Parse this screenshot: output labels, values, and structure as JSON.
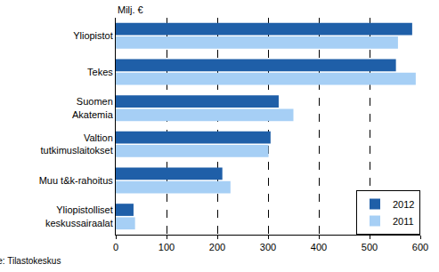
{
  "chart_data": {
    "type": "bar",
    "orientation": "horizontal",
    "xlabel": "Milj. €",
    "annotations": [
      "Lähde: Tilastokeskus"
    ],
    "categories": [
      "Yliopistot",
      "Tekes",
      "Suomen\nAkatemia",
      "Valtion\ntutkimuslaitokset",
      "Muu t&k-rahoitus",
      "Yliopistolliset\nkeskussairaalat"
    ],
    "series": [
      {
        "name": "2012",
        "color": "#1f5fa8",
        "values": [
          584,
          552,
          321,
          305,
          210,
          35
        ]
      },
      {
        "name": "2011",
        "color": "#a6cff5",
        "values": [
          556,
          591,
          350,
          301,
          226,
          38
        ]
      }
    ],
    "xlim": [
      0,
      600
    ],
    "xticks": [
      0,
      100,
      200,
      300,
      400,
      500,
      600
    ],
    "grid": true,
    "legend": "lower right"
  }
}
